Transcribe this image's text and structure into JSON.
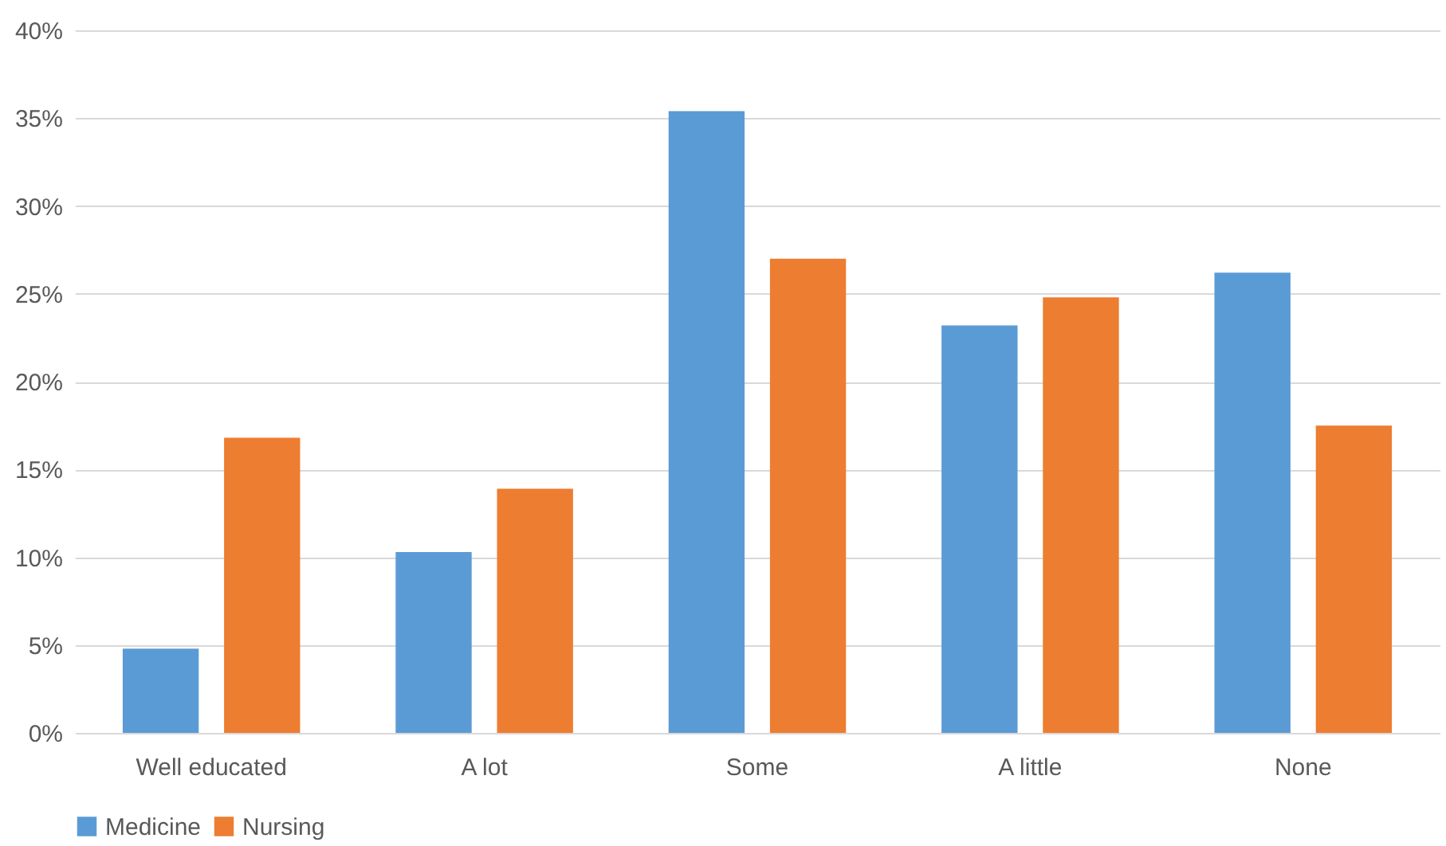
{
  "chart_data": {
    "type": "bar",
    "categories": [
      "Well educated",
      "A lot",
      "Some",
      "A little",
      "None"
    ],
    "series": [
      {
        "name": "Medicine",
        "color": "#5b9bd5",
        "values": [
          4.8,
          10.3,
          35.4,
          23.2,
          26.2
        ]
      },
      {
        "name": "Nursing",
        "color": "#ed7d31",
        "values": [
          16.8,
          13.9,
          27.0,
          24.8,
          17.5
        ]
      }
    ],
    "ylim": [
      0,
      40
    ],
    "yticks": [
      {
        "value": 0,
        "label": "0%"
      },
      {
        "value": 5,
        "label": "5%"
      },
      {
        "value": 10,
        "label": "10%"
      },
      {
        "value": 15,
        "label": "15%"
      },
      {
        "value": 20,
        "label": "20%"
      },
      {
        "value": 25,
        "label": "25%"
      },
      {
        "value": 30,
        "label": "30%"
      },
      {
        "value": 35,
        "label": "35%"
      },
      {
        "value": 40,
        "label": "40%"
      }
    ],
    "grid": "y",
    "legend": "bottom"
  }
}
